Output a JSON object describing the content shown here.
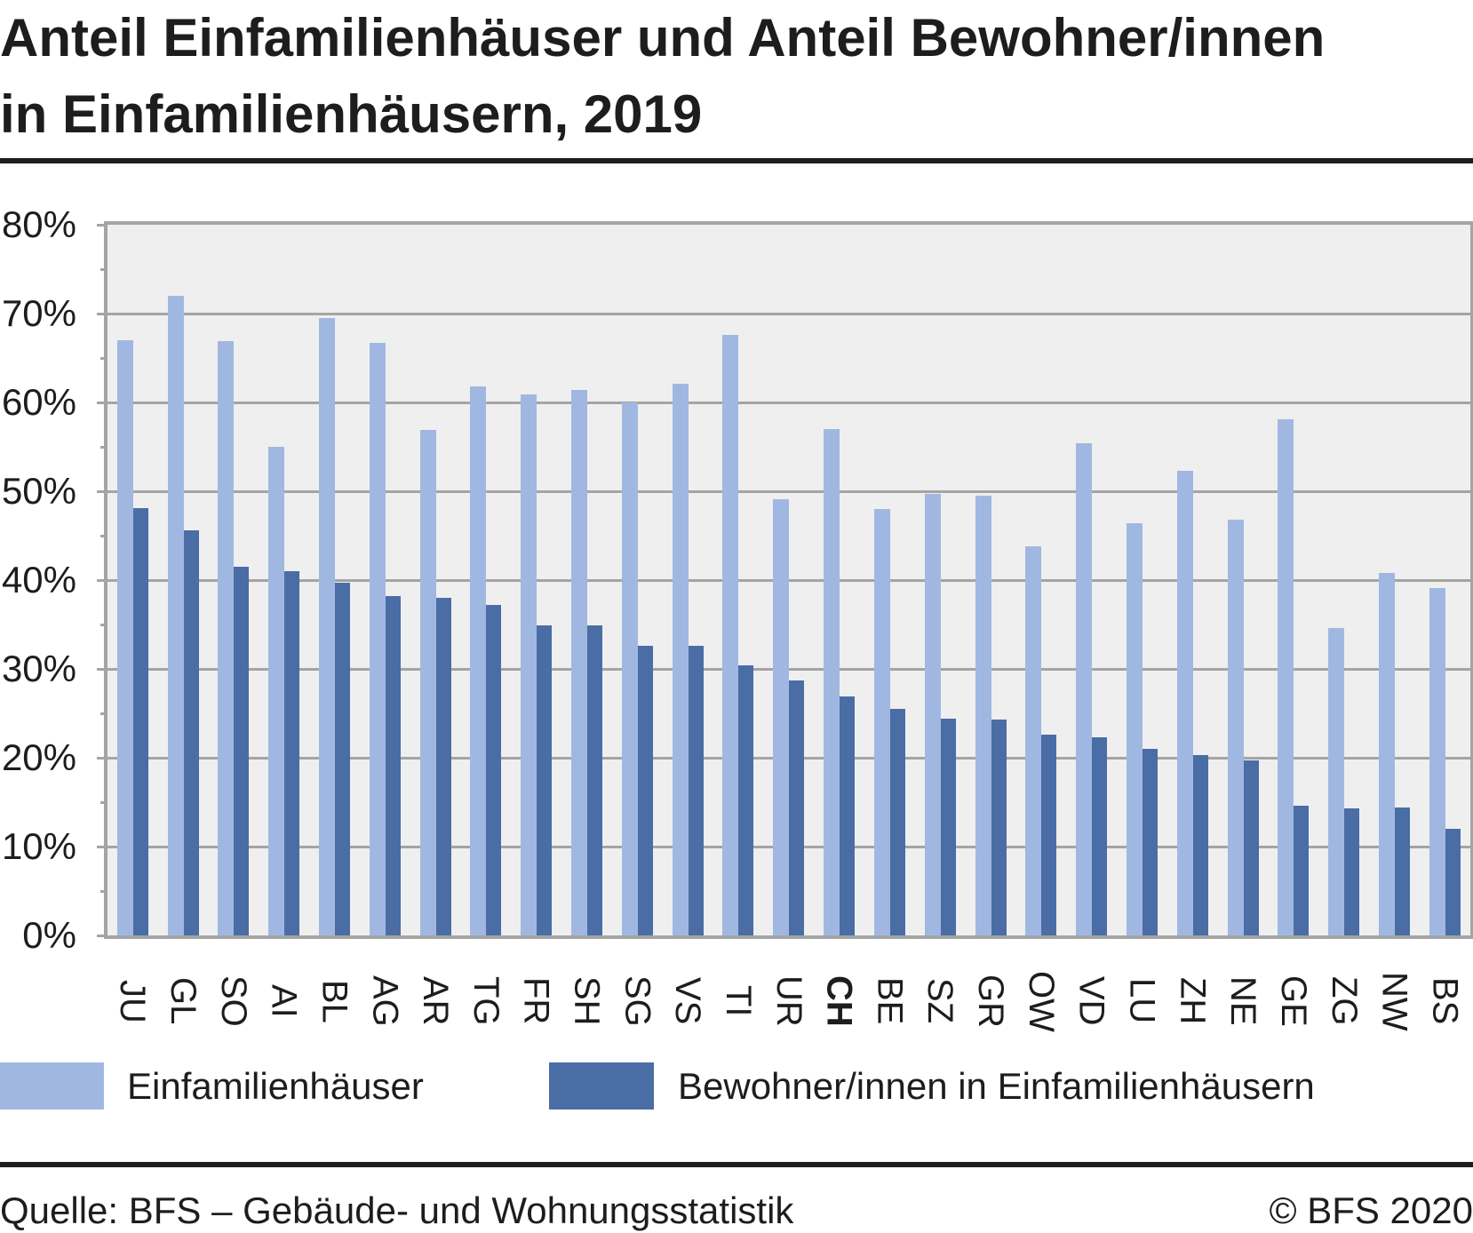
{
  "title": {
    "line1": "Anteil Einfamilienhäuser und Anteil Bewohner/innen",
    "line2": "in Einfamilienhäusern, 2019"
  },
  "footer": {
    "source": "Quelle: BFS – Gebäude- und Wohnungsstatistik",
    "copyright": "© BFS 2020"
  },
  "colors": {
    "series_light": "#a0b8e1",
    "series_dark": "#4a6da5",
    "plot_background": "#efefef",
    "gridline": "#a4a4a4",
    "text": "#1d1d1b"
  },
  "chart_data": {
    "type": "bar",
    "title": "Anteil Einfamilienhäuser und Anteil Bewohner/innen in Einfamilienhäusern, 2019",
    "categories": [
      "JU",
      "GL",
      "SO",
      "AI",
      "BL",
      "AG",
      "AR",
      "TG",
      "FR",
      "SH",
      "SG",
      "VS",
      "TI",
      "UR",
      "CH",
      "BE",
      "SZ",
      "GR",
      "OW",
      "VD",
      "LU",
      "ZH",
      "NE",
      "GE",
      "ZG",
      "NW",
      "BS"
    ],
    "emphasized_category": "CH",
    "series": [
      {
        "name": "Einfamilienhäuser",
        "color": "#a0b8e1",
        "values": [
          67.0,
          72.0,
          66.9,
          55.0,
          69.5,
          66.7,
          56.9,
          61.8,
          60.9,
          61.4,
          60.0,
          62.1,
          67.6,
          49.1,
          57.0,
          48.0,
          49.7,
          49.5,
          43.8,
          55.4,
          46.4,
          52.3,
          46.8,
          58.1,
          34.6,
          40.8,
          39.1
        ]
      },
      {
        "name": "Bewohner/innen in Einfamilienhäusern",
        "color": "#4a6da5",
        "values": [
          48.1,
          45.6,
          41.5,
          41.0,
          39.7,
          38.2,
          38.0,
          37.2,
          34.9,
          34.9,
          32.6,
          32.6,
          30.4,
          28.7,
          26.9,
          25.5,
          24.4,
          24.3,
          22.6,
          22.3,
          21.0,
          20.3,
          19.7,
          14.6,
          14.3,
          14.4,
          12.0
        ]
      }
    ],
    "ylabel": "",
    "xlabel": "",
    "ylim": [
      0,
      80
    ],
    "ytick_labels": [
      "0%",
      "10%",
      "20%",
      "30%",
      "40%",
      "50%",
      "60%",
      "70%",
      "80%"
    ],
    "ytick_values": [
      0,
      10,
      20,
      30,
      40,
      50,
      60,
      70,
      80
    ],
    "minor_tick_values": [
      5,
      15,
      25,
      35,
      45,
      55,
      65,
      75
    ],
    "grid": "horizontal",
    "legend_position": "bottom"
  }
}
